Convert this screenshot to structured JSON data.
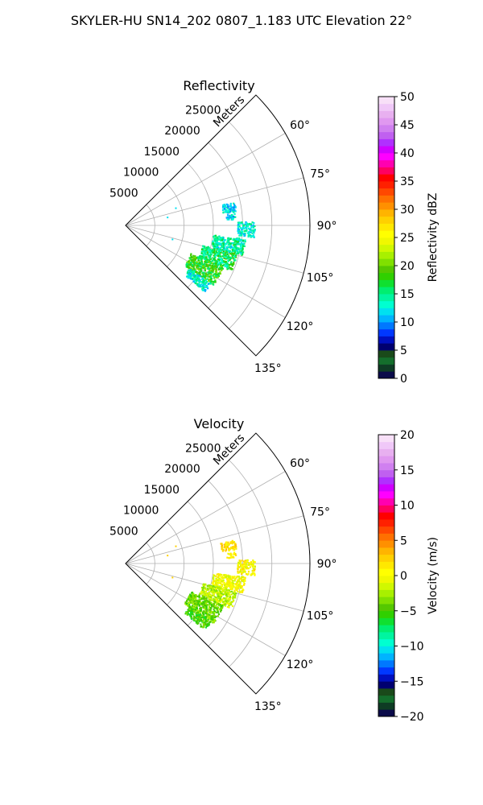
{
  "figure": {
    "suptitle": "SKYLER-HU  SN14_202  0807_1.183 UTC Elevation 22°"
  },
  "chart_data": [
    {
      "type": "polar-ppi",
      "title": "Reflectivity",
      "radial_unit_label": "Meters",
      "radial_ticks": [
        5000,
        10000,
        15000,
        20000,
        25000
      ],
      "radial_tick_labels": [
        "5000",
        "10000",
        "15000",
        "20000",
        "25000"
      ],
      "r_max": 31500,
      "theta_range_deg": [
        45,
        135
      ],
      "theta_ticks_deg": [
        60,
        75,
        90,
        105,
        120,
        135
      ],
      "theta_tick_labels": [
        "60°",
        "75°",
        "90°",
        "105°",
        "120°",
        "135°"
      ],
      "grid": true,
      "colorbar": {
        "label": "Reflectivity dBZ",
        "min": 0,
        "max": 50,
        "ticks": [
          0,
          5,
          10,
          15,
          20,
          25,
          30,
          35,
          40,
          45,
          50
        ],
        "tick_labels": [
          "0",
          "5",
          "10",
          "15",
          "20",
          "25",
          "30",
          "35",
          "40",
          "45",
          "50"
        ],
        "colors": [
          "#0b0b4a",
          "#0e3c24",
          "#146e2c",
          "#1a4a1a",
          "#000070",
          "#0010c0",
          "#0038ff",
          "#0078ff",
          "#00b4ff",
          "#00e0f0",
          "#00ffd0",
          "#00f5a0",
          "#00ee70",
          "#10e030",
          "#30d000",
          "#55c800",
          "#80e000",
          "#a8f000",
          "#d0f800",
          "#f0f800",
          "#ffff00",
          "#ffe800",
          "#ffd000",
          "#ffb400",
          "#ff9000",
          "#ff7000",
          "#ff4800",
          "#ff2000",
          "#ff0000",
          "#ff0060",
          "#ff00b0",
          "#ff00ff",
          "#d000ff",
          "#b030ff",
          "#c060f0",
          "#d080f0",
          "#e098f0",
          "#e8b0f0",
          "#f0c8f8",
          "#f8e0f8"
        ]
      },
      "echo_regions": [
        {
          "theta_deg": [
            77.5,
            82.5
          ],
          "range_m": [
            16500,
            19000
          ],
          "value": 12,
          "approx": true
        },
        {
          "theta_deg": [
            83.5,
            86.5
          ],
          "range_m": [
            17200,
            18800
          ],
          "value": 12,
          "approx": true
        },
        {
          "theta_deg": [
            88,
            95
          ],
          "range_m": [
            19000,
            22000
          ],
          "value": 13,
          "approx": true
        },
        {
          "theta_deg": [
            96,
            104
          ],
          "range_m": [
            15000,
            20500
          ],
          "value": 14,
          "approx": true
        },
        {
          "theta_deg": [
            104,
            113
          ],
          "range_m": [
            13500,
            19500
          ],
          "value": 16,
          "approx": true
        },
        {
          "theta_deg": [
            113,
            124
          ],
          "range_m": [
            12000,
            18000
          ],
          "value": 18,
          "approx": true
        },
        {
          "theta_deg": [
            124,
            130
          ],
          "range_m": [
            13000,
            17500
          ],
          "value": 13,
          "approx": true
        }
      ]
    },
    {
      "type": "polar-ppi",
      "title": "Velocity",
      "radial_unit_label": "Meters",
      "radial_ticks": [
        5000,
        10000,
        15000,
        20000,
        25000
      ],
      "radial_tick_labels": [
        "5000",
        "10000",
        "15000",
        "20000",
        "25000"
      ],
      "r_max": 31500,
      "theta_range_deg": [
        45,
        135
      ],
      "theta_ticks_deg": [
        60,
        75,
        90,
        105,
        120,
        135
      ],
      "theta_tick_labels": [
        "60°",
        "75°",
        "90°",
        "105°",
        "120°",
        "135°"
      ],
      "grid": true,
      "colorbar": {
        "label": "Velocity (m/s)",
        "min": -20,
        "max": 20,
        "ticks": [
          -20,
          -15,
          -10,
          -5,
          0,
          5,
          10,
          15,
          20
        ],
        "tick_labels": [
          "−20",
          "−15",
          "−10",
          "−5",
          "0",
          "5",
          "10",
          "15",
          "20"
        ],
        "colors": [
          "#0b0b4a",
          "#0e3c24",
          "#146e2c",
          "#1a4a1a",
          "#000070",
          "#0010c0",
          "#0038ff",
          "#0078ff",
          "#00b4ff",
          "#00e0f0",
          "#00ffd0",
          "#00f5a0",
          "#00ee70",
          "#10e030",
          "#30d000",
          "#55c800",
          "#80e000",
          "#a8f000",
          "#d0f800",
          "#f0f800",
          "#ffff00",
          "#ffe800",
          "#ffd000",
          "#ffb400",
          "#ff9000",
          "#ff7000",
          "#ff4800",
          "#ff2000",
          "#ff0000",
          "#ff0060",
          "#ff00b0",
          "#ff00ff",
          "#d000ff",
          "#b030ff",
          "#c060f0",
          "#d080f0",
          "#e098f0",
          "#e8b0f0",
          "#f0c8f8",
          "#f8e0f8"
        ]
      },
      "echo_regions": [
        {
          "theta_deg": [
            77.5,
            82.5
          ],
          "range_m": [
            16500,
            19000
          ],
          "value": 1.5,
          "approx": true
        },
        {
          "theta_deg": [
            83.5,
            86.5
          ],
          "range_m": [
            17200,
            18800
          ],
          "value": 1.5,
          "approx": true
        },
        {
          "theta_deg": [
            88,
            95
          ],
          "range_m": [
            19000,
            22000
          ],
          "value": 0.5,
          "approx": true
        },
        {
          "theta_deg": [
            96,
            104
          ],
          "range_m": [
            15000,
            20500
          ],
          "value": 0,
          "approx": true
        },
        {
          "theta_deg": [
            104,
            113
          ],
          "range_m": [
            13500,
            19500
          ],
          "value": -2,
          "approx": true
        },
        {
          "theta_deg": [
            113,
            124
          ],
          "range_m": [
            12000,
            18000
          ],
          "value": -4,
          "approx": true
        },
        {
          "theta_deg": [
            124,
            130
          ],
          "range_m": [
            13000,
            17500
          ],
          "value": -5,
          "approx": true
        }
      ]
    }
  ]
}
